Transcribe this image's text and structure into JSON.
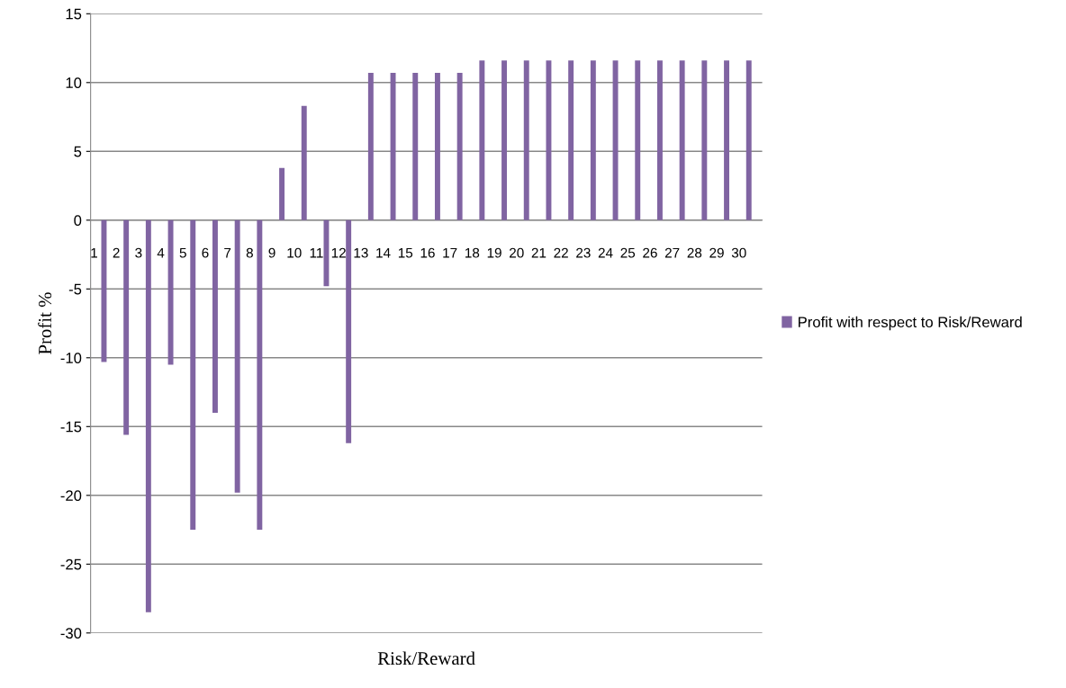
{
  "chart_data": {
    "type": "bar",
    "xlabel": "Risk/Reward",
    "ylabel": "Profit %",
    "categories": [
      "1",
      "2",
      "3",
      "4",
      "5",
      "6",
      "7",
      "8",
      "9",
      "10",
      "11",
      "12",
      "13",
      "14",
      "15",
      "16",
      "17",
      "18",
      "19",
      "20",
      "21",
      "22",
      "23",
      "24",
      "25",
      "26",
      "27",
      "28",
      "29",
      "30"
    ],
    "series": [
      {
        "name": "Profit with respect to Risk/Reward",
        "color": "#8064a2",
        "values": [
          -10.3,
          -15.6,
          -28.5,
          -10.5,
          -22.5,
          -14,
          -19.8,
          -22.5,
          3.8,
          8.3,
          -4.8,
          -16.2,
          10.7,
          10.7,
          10.7,
          10.7,
          10.7,
          11.6,
          11.6,
          11.6,
          11.6,
          11.6,
          11.6,
          11.6,
          11.6,
          11.6,
          11.6,
          11.6,
          11.6,
          11.6
        ]
      }
    ],
    "ylim": [
      -30,
      15
    ],
    "yticks": [
      -30,
      -25,
      -20,
      -15,
      -10,
      -5,
      0,
      5,
      10,
      15
    ],
    "grid": "y",
    "legend": "right"
  }
}
